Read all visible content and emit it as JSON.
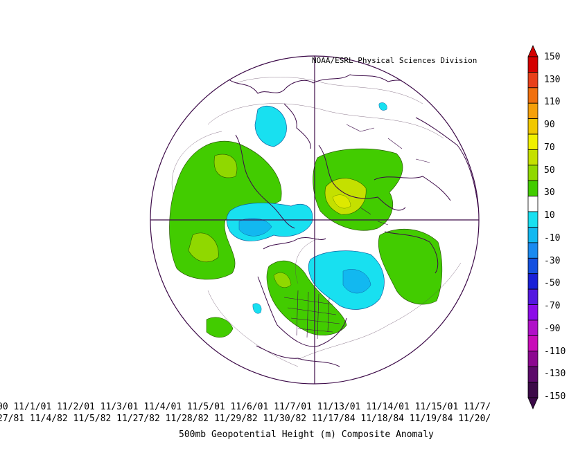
{
  "credit": "NOAA/ESRL Physical Sciences Division",
  "title": "500mb Geopotential Height (m) Composite Anomaly",
  "date_rows": [
    "00 11/1/01 11/2/01 11/3/01 11/4/01 11/5/01 11/6/01 11/7/01 11/13/01 11/14/01 11/15/01 11/7/",
    "27/81 11/4/82 11/5/82 11/27/82 11/28/82 11/29/82 11/30/82 11/17/84 11/18/84 11/19/84 11/20/"
  ],
  "colorbar": {
    "labels": [
      "150",
      "130",
      "110",
      "90",
      "70",
      "50",
      "30",
      "10",
      "-10",
      "-30",
      "-50",
      "-70",
      "-90",
      "-110",
      "-130",
      "-150"
    ],
    "colors": [
      "#d40000",
      "#e8401a",
      "#f0700e",
      "#f5a00a",
      "#f0c800",
      "#f0f000",
      "#c4e000",
      "#90d800",
      "#42cc00",
      "#ffffff",
      "#18e0f0",
      "#12b8f0",
      "#1a8af0",
      "#1450e0",
      "#1a20d8",
      "#5418e0",
      "#8c0ce8",
      "#b010c8",
      "#c80cb8",
      "#8c0890",
      "#5c0a6a",
      "#3c0a48"
    ]
  },
  "chart_data": {
    "type": "heatmap",
    "title": "500mb Geopotential Height (m) Composite Anomaly",
    "units": "m",
    "projection": "Northern Hemisphere polar stereographic",
    "colorbar_range": [
      -150,
      150
    ],
    "colorbar_interval": 20,
    "positive_anomaly_regions": [
      "northern Europe / Scandinavia",
      "North Pacific / Bering",
      "eastern United States",
      "Gulf of Alaska",
      "North Atlantic off Iberia",
      "western Siberia"
    ],
    "negative_anomaly_regions": [
      "Hudson Bay / eastern Canada",
      "Arctic north of Alaska",
      "Siberian Arctic",
      "North Atlantic near Greenland"
    ]
  }
}
